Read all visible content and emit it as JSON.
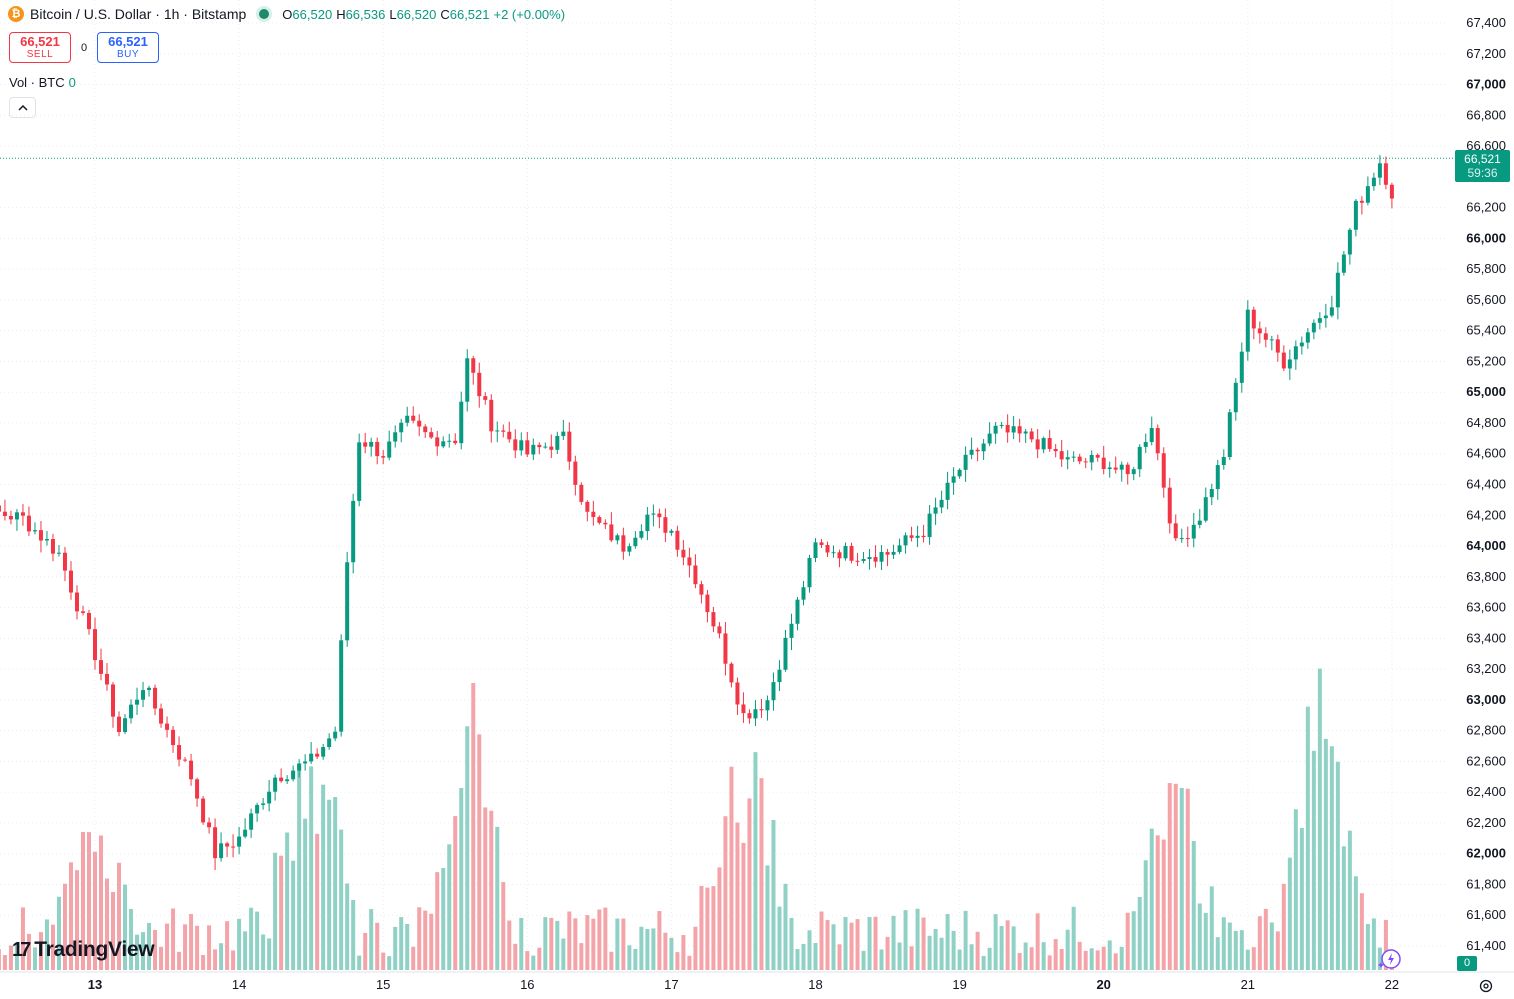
{
  "legend": {
    "coin_symbol": "₿",
    "symbol_title": "Bitcoin / U.S. Dollar · 1h · Bitstamp",
    "o_label": "O",
    "o_value": "66,520",
    "h_label": "H",
    "h_value": "66,536",
    "l_label": "L",
    "l_value": "66,520",
    "c_label": "C",
    "c_value": "66,521",
    "change": "+2 (+0.00%)"
  },
  "trade": {
    "sell_price": "66,521",
    "sell_label": "SELL",
    "spread": "0",
    "buy_price": "66,521",
    "buy_label": "BUY"
  },
  "volume_legend": {
    "label": "Vol · BTC",
    "value": "0"
  },
  "collapse_icon": "chevron-up-icon",
  "branding": {
    "logo_mark": "17",
    "logo_text": "TradingView"
  },
  "price_tag": {
    "price": "66,521",
    "countdown": "59:36"
  },
  "volume_tag": "0",
  "colors": {
    "up": "#089981",
    "down": "#f23645",
    "up_vol": "#8fd1c5",
    "down_vol": "#f4a4a8",
    "grid": "#e9ecf2",
    "axis_text": "#131722"
  },
  "chart_data": {
    "type": "candlestick",
    "title": "Bitcoin / U.S. Dollar · 1h · Bitstamp",
    "y_axis": {
      "ticks": [
        67400,
        67200,
        67000,
        66800,
        66600,
        66200,
        66000,
        65800,
        65600,
        65400,
        65200,
        65000,
        64800,
        64600,
        64400,
        64200,
        64000,
        63800,
        63600,
        63400,
        63200,
        63000,
        62800,
        62600,
        62400,
        62200,
        62000,
        61800,
        61600,
        61400
      ],
      "tick_labels": [
        "67,400",
        "67,200",
        "67,000",
        "66,800",
        "66,600",
        "66,200",
        "66,000",
        "65,800",
        "65,600",
        "65,400",
        "65,200",
        "65,000",
        "64,800",
        "64,600",
        "64,400",
        "64,200",
        "64,000",
        "63,800",
        "63,600",
        "63,400",
        "63,200",
        "63,000",
        "62,800",
        "62,600",
        "62,400",
        "62,200",
        "62,000",
        "61,800",
        "61,600",
        "61,400"
      ],
      "bold_ticks": [
        "67,000",
        "66,000",
        "65,000",
        "64,000",
        "63,000",
        "62,000"
      ],
      "range": [
        61300,
        67500
      ]
    },
    "x_axis": {
      "tick_labels": [
        "13",
        "14",
        "15",
        "16",
        "17",
        "18",
        "19",
        "20",
        "21",
        "22"
      ],
      "bold_ticks": [
        "13",
        "20"
      ],
      "grid": true
    },
    "last_price": 66521,
    "close_anchors": [
      [
        "12 00:00",
        64000
      ],
      [
        "12 06:00",
        64230
      ],
      [
        "12 12:00",
        64180
      ],
      [
        "12 18:00",
        63950
      ],
      [
        "13 00:00",
        63300
      ],
      [
        "13 04:00",
        62800
      ],
      [
        "13 08:00",
        63100
      ],
      [
        "13 12:00",
        62800
      ],
      [
        "13 16:00",
        62500
      ],
      [
        "13 20:00",
        62000
      ],
      [
        "14 00:00",
        62100
      ],
      [
        "14 06:00",
        62500
      ],
      [
        "14 12:00",
        62600
      ],
      [
        "14 16:00",
        62800
      ],
      [
        "14 18:00",
        63900
      ],
      [
        "14 20:00",
        64700
      ],
      [
        "15 00:00",
        64600
      ],
      [
        "15 04:00",
        64800
      ],
      [
        "15 08:00",
        64700
      ],
      [
        "15 12:00",
        64700
      ],
      [
        "15 14:00",
        65200
      ],
      [
        "15 18:00",
        64800
      ],
      [
        "16 00:00",
        64600
      ],
      [
        "16 06:00",
        64700
      ],
      [
        "16 10:00",
        64200
      ],
      [
        "16 16:00",
        64000
      ],
      [
        "16 20:00",
        64200
      ],
      [
        "17 00:00",
        64100
      ],
      [
        "17 04:00",
        63800
      ],
      [
        "17 08:00",
        63400
      ],
      [
        "17 12:00",
        62900
      ],
      [
        "17 16:00",
        63000
      ],
      [
        "17 20:00",
        63500
      ],
      [
        "18 00:00",
        64000
      ],
      [
        "18 06:00",
        63950
      ],
      [
        "18 12:00",
        63950
      ],
      [
        "18 18:00",
        64100
      ],
      [
        "19 00:00",
        64500
      ],
      [
        "19 06:00",
        64750
      ],
      [
        "19 12:00",
        64700
      ],
      [
        "19 18:00",
        64550
      ],
      [
        "20 00:00",
        64550
      ],
      [
        "20 04:00",
        64450
      ],
      [
        "20 08:00",
        64800
      ],
      [
        "20 12:00",
        64000
      ],
      [
        "20 16:00",
        64200
      ],
      [
        "20 20:00",
        64600
      ],
      [
        "21 00:00",
        65500
      ],
      [
        "21 06:00",
        65200
      ],
      [
        "21 10:00",
        65400
      ],
      [
        "21 14:00",
        65600
      ],
      [
        "21 18:00",
        66200
      ],
      [
        "21 22:00",
        66500
      ],
      [
        "22 00:00",
        66300
      ],
      [
        "22 03:00",
        66300
      ],
      [
        "22 05:00",
        66521
      ]
    ],
    "volume_peaks_btc": [
      [
        "13 00:00",
        70
      ],
      [
        "14 12:00",
        120
      ],
      [
        "15 14:00",
        140
      ],
      [
        "17 12:00",
        120
      ],
      [
        "20 12:00",
        100
      ],
      [
        "21 12:00",
        140
      ]
    ]
  }
}
